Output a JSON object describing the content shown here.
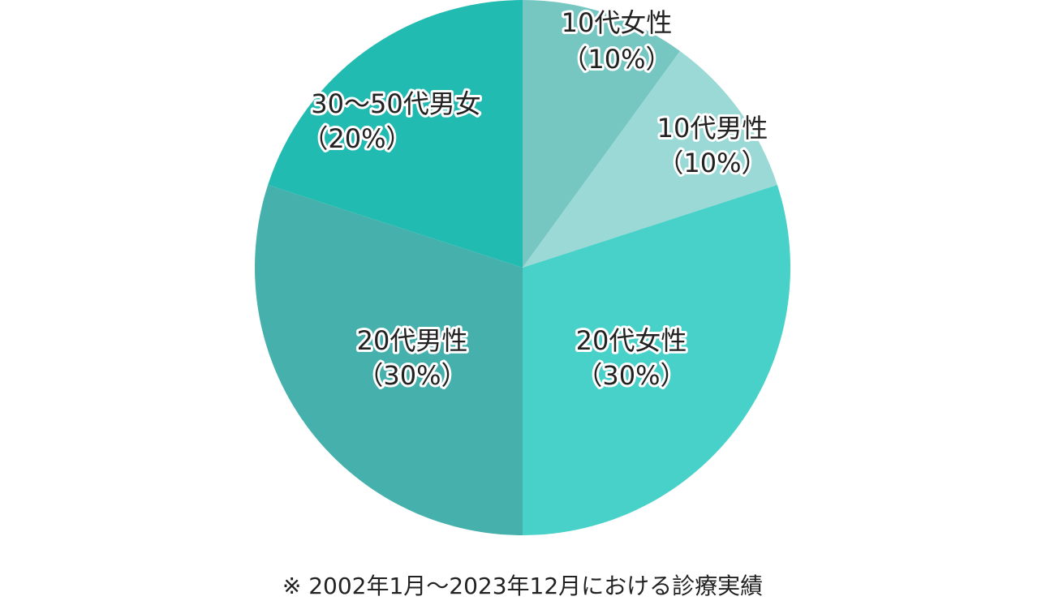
{
  "chart_data": {
    "type": "pie",
    "categories": [
      "10代女性",
      "10代男性",
      "20代女性",
      "20代男性",
      "30〜50代男女"
    ],
    "values": [
      10,
      10,
      30,
      30,
      20
    ],
    "value_labels": [
      "（10%）",
      "（10%）",
      "（30%）",
      "（30%）",
      "（20%）"
    ],
    "colors": [
      "#76c6c2",
      "#9ad9d5",
      "#48d1c9",
      "#46b1ac",
      "#22bbb1"
    ],
    "note": "※ 2002年1月〜2023年12月における診療実績"
  }
}
